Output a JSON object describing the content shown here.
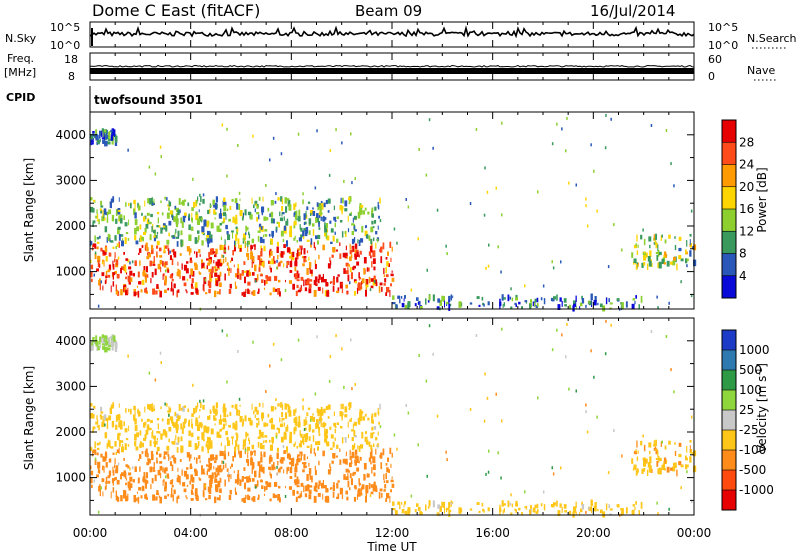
{
  "header": {
    "radar": "Dome C East (fitACF)",
    "beam": "Beam 09",
    "date": "16/Jul/2014"
  },
  "top_panels": {
    "nsky_label": "N.Sky",
    "nsky_ticks": [
      "10^5",
      "10^0"
    ],
    "nsearch_label": "N.Search",
    "nsearch_ticks": [
      "10^5",
      "10^0"
    ],
    "freq_label": "Freq.",
    "freq_unit": "[MHz]",
    "freq_ticks": [
      "18",
      "8"
    ],
    "nave_label": "Nave",
    "nave_ticks": [
      "60",
      "0"
    ],
    "cpid_label": "CPID",
    "cpid_value": "twofsound 3501"
  },
  "power_colorbar": {
    "label": "Power [dB]",
    "ticks": [
      "28",
      "24",
      "20",
      "16",
      "12",
      "8",
      "4"
    ],
    "colors": [
      "#e60000",
      "#ff4a1a",
      "#ff9a00",
      "#ffd500",
      "#8ccf2e",
      "#3a9a5e",
      "#2a58b8",
      "#0a0ad8"
    ]
  },
  "velocity_colorbar": {
    "label": "Velocity [m s-1]",
    "ticks": [
      "1000",
      "500",
      "100",
      "25",
      "-25",
      "-100",
      "-500",
      "-1000"
    ],
    "colors": [
      "#1c3cc8",
      "#2e7ab0",
      "#2e9a46",
      "#8ed63c",
      "#c8c8c8",
      "#ffc61a",
      "#ff8c1a",
      "#ff4a10",
      "#e60000"
    ]
  },
  "chart_data": {
    "type": "heatmap",
    "xlabel": "Time UT",
    "ylabel": "Slant Range [km]",
    "x_ticks": [
      "00:00",
      "04:00",
      "08:00",
      "12:00",
      "16:00",
      "20:00",
      "00:00"
    ],
    "y_ticks": [
      "4000",
      "3000",
      "2000",
      "1000"
    ],
    "x_range_hours": [
      0,
      24
    ],
    "y_range_km": [
      180,
      4500
    ],
    "scatter_regions": [
      {
        "time_start": 0.0,
        "time_end": 12.0,
        "range_min": 500,
        "range_max": 1600,
        "power_db": 26,
        "velocity": -300
      },
      {
        "time_start": 0.0,
        "time_end": 11.5,
        "range_min": 1600,
        "range_max": 2600,
        "power_db": 12,
        "velocity": -60
      },
      {
        "time_start": 0.0,
        "time_end": 1.0,
        "range_min": 3800,
        "range_max": 4100,
        "power_db": 8,
        "velocity": 30
      },
      {
        "time_start": 12.0,
        "time_end": 22.0,
        "range_min": 180,
        "range_max": 450,
        "power_db": 8,
        "velocity": -50
      },
      {
        "time_start": 21.5,
        "time_end": 24.0,
        "range_min": 1100,
        "range_max": 1800,
        "power_db": 14,
        "velocity": -80
      }
    ]
  }
}
